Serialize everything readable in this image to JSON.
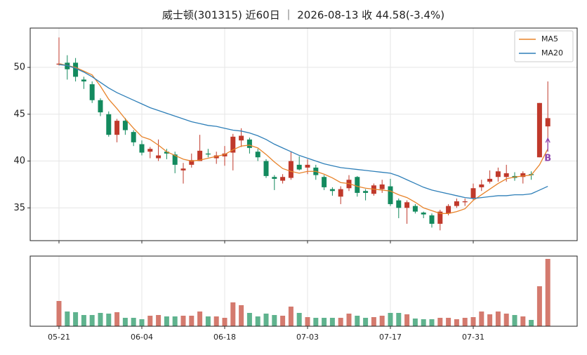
{
  "chart_data": {
    "type": "candlestick",
    "title": "威士顿(301315) 近60日 ｜ 2026-08-13 收 44.58(-3.4%)",
    "categories": [
      "05-21",
      null,
      null,
      null,
      null,
      null,
      null,
      null,
      null,
      null,
      "06-04",
      null,
      null,
      null,
      null,
      null,
      null,
      null,
      null,
      null,
      "06-18",
      null,
      null,
      null,
      null,
      null,
      null,
      null,
      null,
      null,
      "07-03",
      null,
      null,
      null,
      null,
      null,
      null,
      null,
      null,
      null,
      "07-17",
      null,
      null,
      null,
      null,
      null,
      null,
      null,
      null,
      null,
      "07-31",
      null,
      null,
      null,
      null,
      null,
      null,
      null,
      null,
      null
    ],
    "open": [
      50.3,
      50.5,
      50.5,
      48.7,
      48.2,
      46.5,
      45.0,
      42.8,
      44.3,
      43.1,
      41.8,
      41.0,
      40.3,
      41.0,
      40.7,
      39.0,
      39.6,
      40.0,
      40.8,
      40.3,
      40.5,
      40.9,
      42.2,
      42.3,
      41.0,
      40.0,
      38.3,
      37.9,
      38.2,
      39.6,
      39.3,
      39.3,
      38.3,
      37.0,
      36.2,
      37.1,
      38.3,
      36.8,
      36.5,
      37.0,
      37.3,
      35.8,
      35.0,
      35.2,
      34.5,
      34.2,
      33.3,
      34.4,
      35.2,
      35.6,
      36.0,
      37.2,
      37.8,
      38.3,
      38.3,
      38.4,
      38.3,
      38.6,
      40.4,
      43.7
    ],
    "high": [
      53.2,
      51.3,
      51.0,
      49.0,
      48.5,
      46.7,
      45.3,
      44.5,
      44.6,
      43.3,
      42.2,
      41.5,
      42.3,
      41.3,
      41.0,
      39.8,
      40.8,
      42.8,
      41.3,
      41.0,
      41.6,
      42.9,
      43.5,
      42.5,
      41.3,
      40.2,
      38.5,
      38.6,
      41.0,
      40.5,
      40.2,
      39.6,
      38.5,
      37.2,
      37.3,
      38.5,
      38.4,
      37.0,
      37.6,
      38.0,
      38.1,
      36.0,
      35.8,
      35.4,
      34.6,
      34.4,
      34.8,
      35.4,
      36.0,
      36.0,
      37.6,
      38.0,
      39.0,
      39.3,
      39.6,
      38.8,
      38.9,
      38.9,
      46.2,
      48.5
    ],
    "low": [
      50.2,
      48.7,
      48.5,
      47.7,
      46.2,
      44.8,
      42.6,
      42.0,
      42.8,
      41.6,
      40.6,
      40.3,
      40.0,
      40.2,
      38.7,
      37.6,
      39.3,
      40.0,
      40.4,
      39.7,
      39.5,
      39.0,
      41.5,
      40.8,
      40.0,
      38.2,
      36.9,
      37.6,
      38.0,
      39.0,
      38.6,
      38.0,
      36.9,
      36.3,
      35.4,
      36.8,
      36.2,
      35.8,
      36.3,
      36.6,
      35.2,
      33.9,
      33.3,
      34.4,
      33.9,
      32.9,
      32.6,
      34.2,
      35.0,
      35.2,
      35.8,
      36.8,
      37.6,
      37.8,
      37.8,
      37.9,
      37.6,
      38.0,
      40.4,
      41.3
    ],
    "close": [
      50.4,
      49.8,
      49.0,
      48.5,
      46.5,
      45.2,
      42.8,
      44.3,
      43.3,
      42.0,
      40.9,
      41.3,
      40.6,
      40.8,
      39.6,
      39.2,
      40.1,
      41.1,
      40.7,
      40.6,
      40.8,
      42.6,
      42.7,
      41.4,
      40.4,
      38.4,
      38.1,
      38.3,
      40.0,
      39.1,
      39.6,
      38.5,
      37.2,
      36.8,
      37.0,
      38.0,
      36.6,
      36.6,
      37.4,
      37.5,
      35.4,
      35.0,
      35.6,
      34.6,
      34.3,
      33.3,
      34.6,
      35.2,
      35.7,
      35.7,
      37.1,
      37.5,
      38.1,
      38.9,
      38.7,
      38.2,
      38.7,
      38.5,
      46.2,
      44.58
    ],
    "up_color": "#c0392b",
    "down_color": "#138a5e",
    "volume_up_color": "#d47a6e",
    "volume_down_color": "#5fb38e",
    "ma": [
      {
        "name": "MA5",
        "color": "#e8832a",
        "values": [
          50.4,
          50.2,
          50.0,
          49.6,
          49.2,
          48.0,
          46.6,
          45.6,
          44.5,
          43.5,
          42.6,
          42.3,
          41.7,
          41.0,
          40.6,
          40.2,
          40.0,
          40.1,
          40.3,
          40.5,
          40.7,
          41.2,
          41.6,
          41.7,
          41.4,
          40.7,
          39.9,
          39.2,
          38.9,
          38.7,
          38.9,
          38.9,
          38.6,
          38.2,
          37.7,
          37.6,
          37.3,
          37.1,
          37.0,
          36.9,
          36.8,
          36.4,
          36.1,
          35.6,
          35.0,
          34.7,
          34.4,
          34.4,
          34.6,
          34.9,
          35.8,
          36.4,
          37.0,
          37.6,
          38.1,
          38.3,
          38.4,
          38.5,
          39.6,
          41.3
        ]
      },
      {
        "name": "MA20",
        "color": "#2e7fb8",
        "values": [
          50.3,
          50.2,
          49.9,
          49.5,
          49.0,
          48.4,
          47.8,
          47.3,
          46.9,
          46.5,
          46.1,
          45.7,
          45.4,
          45.1,
          44.8,
          44.5,
          44.2,
          44.0,
          43.8,
          43.7,
          43.5,
          43.3,
          43.2,
          43.0,
          42.7,
          42.3,
          41.8,
          41.4,
          41.0,
          40.6,
          40.3,
          40.0,
          39.7,
          39.5,
          39.3,
          39.2,
          39.1,
          39.0,
          38.9,
          38.8,
          38.7,
          38.4,
          38.0,
          37.6,
          37.2,
          36.9,
          36.7,
          36.5,
          36.3,
          36.1,
          36.0,
          36.1,
          36.2,
          36.3,
          36.3,
          36.4,
          36.4,
          36.5,
          36.9,
          37.3
        ]
      }
    ],
    "volume": [
      36,
      21,
      20,
      16,
      16,
      19,
      18,
      20,
      12,
      12,
      10,
      15,
      16,
      14,
      14,
      15,
      15,
      21,
      14,
      14,
      12,
      34,
      30,
      19,
      14,
      18,
      16,
      15,
      28,
      19,
      13,
      12,
      12,
      12,
      12,
      18,
      15,
      12,
      13,
      15,
      19,
      19,
      17,
      11,
      10,
      10,
      12,
      12,
      10,
      12,
      13,
      21,
      17,
      21,
      18,
      16,
      14,
      9,
      57,
      96
    ],
    "volume_ylim": [
      0,
      100
    ],
    "ylim": [
      31.5,
      54.2
    ],
    "yticks": [
      35,
      40,
      45,
      50
    ],
    "grid": true,
    "legend": "upper right",
    "markers": [
      {
        "label": "B",
        "index": 59,
        "color": "#8e44ad"
      }
    ]
  }
}
